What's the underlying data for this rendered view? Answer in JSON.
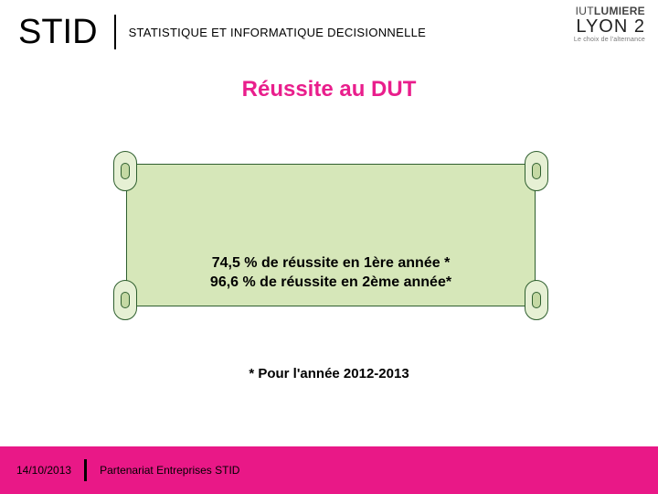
{
  "header": {
    "acronym": "STID",
    "subtitle": "STATISTIQUE ET INFORMATIQUE DECISIONNELLE"
  },
  "logo": {
    "line1_a": "IUT",
    "line1_b": "LUMIERE",
    "line2": "LYON 2",
    "line3": "Le choix de l'alternance"
  },
  "title": "Réussite au DUT",
  "scroll": {
    "bg_color": "#d6e7b9",
    "border_color": "#2f5f2f",
    "stat1": "74,5 % de réussite en 1ère année *",
    "stat2": "96,6 % de réussite en 2ème année*"
  },
  "footnote": "* Pour l'année 2012-2013",
  "footer": {
    "date": "14/10/2013",
    "text": "Partenariat Entreprises STID",
    "bar_color": "#e91887"
  },
  "accent_color": "#e91e8c"
}
